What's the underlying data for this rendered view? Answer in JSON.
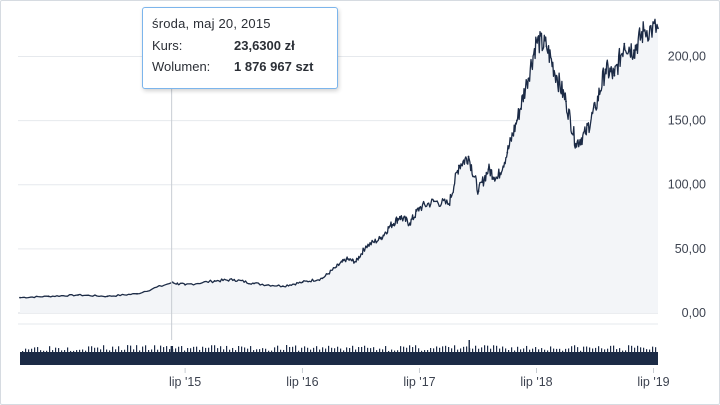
{
  "chart_data": {
    "type": "area",
    "title": "",
    "xlabel": "",
    "ylabel": "",
    "ylim": [
      0,
      230
    ],
    "y_ticks": [
      "0,00",
      "50,00",
      "100,00",
      "150,00",
      "200,00"
    ],
    "x_ticks": [
      "lip '15",
      "lip '16",
      "lip '17",
      "lip '18",
      "lip '19"
    ],
    "x_range": [
      "2014-02-01",
      "2019-07-15"
    ],
    "grid": "horizontal",
    "line_color": "#1c2b46",
    "fill_color": "#f3f5f8",
    "series": [
      {
        "points": [
          [
            "2014-02-01",
            12
          ],
          [
            "2014-05-01",
            13
          ],
          [
            "2014-08-01",
            14
          ],
          [
            "2014-11-01",
            13
          ],
          [
            "2015-02-01",
            15
          ],
          [
            "2015-05-20",
            23.63
          ],
          [
            "2015-07-01",
            22
          ],
          [
            "2015-10-01",
            25
          ],
          [
            "2015-12-01",
            26
          ],
          [
            "2016-02-01",
            23
          ],
          [
            "2016-05-01",
            21
          ],
          [
            "2016-07-01",
            24
          ],
          [
            "2016-09-01",
            27
          ],
          [
            "2016-10-15",
            36
          ],
          [
            "2016-11-15",
            42
          ],
          [
            "2016-12-15",
            40
          ],
          [
            "2017-01-15",
            52
          ],
          [
            "2017-03-01",
            58
          ],
          [
            "2017-04-01",
            68
          ],
          [
            "2017-05-01",
            75
          ],
          [
            "2017-06-01",
            70
          ],
          [
            "2017-07-01",
            82
          ],
          [
            "2017-08-15",
            87
          ],
          [
            "2017-10-01",
            85
          ],
          [
            "2017-11-01",
            115
          ],
          [
            "2017-12-01",
            122
          ],
          [
            "2018-01-01",
            95
          ],
          [
            "2018-02-01",
            112
          ],
          [
            "2018-03-01",
            105
          ],
          [
            "2018-04-01",
            125
          ],
          [
            "2018-05-01",
            150
          ],
          [
            "2018-06-01",
            180
          ],
          [
            "2018-07-01",
            212
          ],
          [
            "2018-08-01",
            208
          ],
          [
            "2018-09-01",
            185
          ],
          [
            "2018-10-01",
            165
          ],
          [
            "2018-11-01",
            132
          ],
          [
            "2018-12-01",
            140
          ],
          [
            "2019-01-01",
            160
          ],
          [
            "2019-02-01",
            190
          ],
          [
            "2019-03-01",
            185
          ],
          [
            "2019-04-01",
            210
          ],
          [
            "2019-05-01",
            205
          ],
          [
            "2019-06-01",
            220
          ],
          [
            "2019-07-15",
            222
          ]
        ]
      }
    ],
    "volume": {
      "color": "#1c2b46",
      "spike_date": "2017-12-01"
    },
    "crosshair_date": "2015-05-20"
  },
  "tooltip": {
    "date": "środa, maj 20, 2015",
    "price_label": "Kurs:",
    "price_value": "23,6300 zł",
    "volume_label": "Wolumen:",
    "volume_value": "1 876 967 szt"
  }
}
